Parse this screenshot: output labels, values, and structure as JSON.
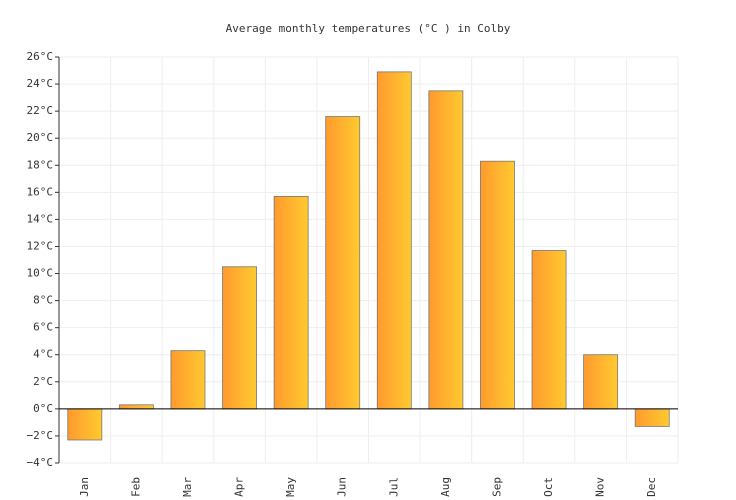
{
  "chart_data": {
    "type": "bar",
    "title": "Average monthly temperatures (°C ) in Colby",
    "categories": [
      "Jan",
      "Feb",
      "Mar",
      "Apr",
      "May",
      "Jun",
      "Jul",
      "Aug",
      "Sep",
      "Oct",
      "Nov",
      "Dec"
    ],
    "values": [
      -2.3,
      0.3,
      4.3,
      10.5,
      15.7,
      21.6,
      24.9,
      23.5,
      18.3,
      11.7,
      4.0,
      -1.3
    ],
    "color": "#ffb030",
    "ylim": [
      -4,
      26
    ],
    "yticks": [
      {
        "value": -4,
        "label": "−4°C"
      },
      {
        "value": -2,
        "label": "−2°C"
      },
      {
        "value": 0,
        "label": "0°C"
      },
      {
        "value": 2,
        "label": "2°C"
      },
      {
        "value": 4,
        "label": "4°C"
      },
      {
        "value": 6,
        "label": "6°C"
      },
      {
        "value": 8,
        "label": "8°C"
      },
      {
        "value": 10,
        "label": "10°C"
      },
      {
        "value": 12,
        "label": "12°C"
      },
      {
        "value": 14,
        "label": "14°C"
      },
      {
        "value": 16,
        "label": "16°C"
      },
      {
        "value": 18,
        "label": "18°C"
      },
      {
        "value": 20,
        "label": "20°C"
      },
      {
        "value": 22,
        "label": "22°C"
      },
      {
        "value": 24,
        "label": "24°C"
      },
      {
        "value": 26,
        "label": "26°C"
      }
    ],
    "grid": true
  }
}
